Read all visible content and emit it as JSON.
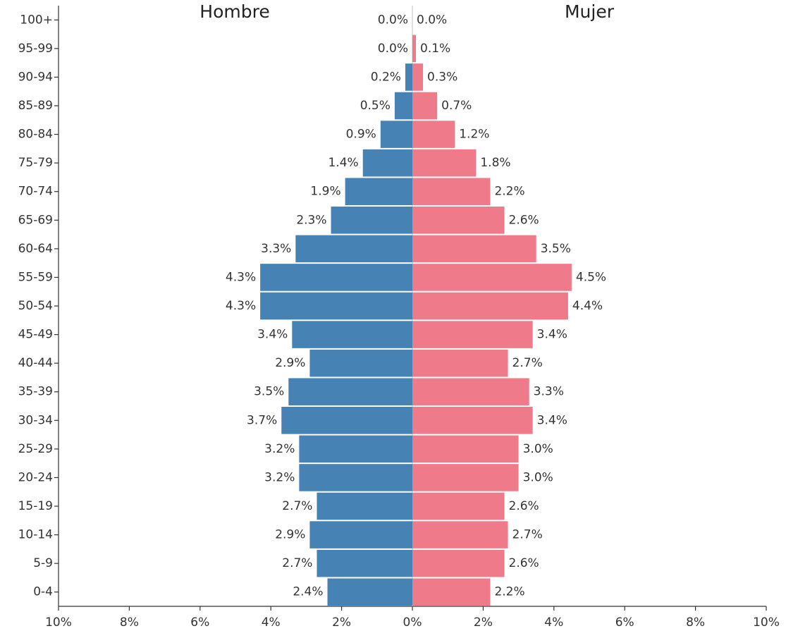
{
  "chart_data": {
    "type": "pyramid",
    "categories": [
      "100+",
      "95-99",
      "90-94",
      "85-89",
      "80-84",
      "75-79",
      "70-74",
      "65-69",
      "60-64",
      "55-59",
      "50-54",
      "45-49",
      "40-44",
      "35-39",
      "30-34",
      "25-29",
      "20-24",
      "15-19",
      "10-14",
      "5-9",
      "0-4"
    ],
    "series": [
      {
        "name": "Hombre",
        "color": "#4682b4",
        "side": "left",
        "values": [
          0.0,
          0.0,
          0.2,
          0.5,
          0.9,
          1.4,
          1.9,
          2.3,
          3.3,
          4.3,
          4.3,
          3.4,
          2.9,
          3.5,
          3.7,
          3.2,
          3.2,
          2.7,
          2.9,
          2.7,
          2.4
        ],
        "value_labels": [
          "0.0%",
          "0.0%",
          "0.2%",
          "0.5%",
          "0.9%",
          "1.4%",
          "1.9%",
          "2.3%",
          "3.3%",
          "4.3%",
          "4.3%",
          "3.4%",
          "2.9%",
          "3.5%",
          "3.7%",
          "3.2%",
          "3.2%",
          "2.7%",
          "2.9%",
          "2.7%",
          "2.4%"
        ]
      },
      {
        "name": "Mujer",
        "color": "#ef7b8a",
        "side": "right",
        "values": [
          0.0,
          0.1,
          0.3,
          0.7,
          1.2,
          1.8,
          2.2,
          2.6,
          3.5,
          4.5,
          4.4,
          3.4,
          2.7,
          3.3,
          3.4,
          3.0,
          3.0,
          2.6,
          2.7,
          2.6,
          2.2
        ],
        "value_labels": [
          "0.0%",
          "0.1%",
          "0.3%",
          "0.7%",
          "1.2%",
          "1.8%",
          "2.2%",
          "2.6%",
          "3.5%",
          "4.5%",
          "4.4%",
          "3.4%",
          "2.7%",
          "3.3%",
          "3.4%",
          "3.0%",
          "3.0%",
          "2.6%",
          "2.7%",
          "2.6%",
          "2.2%"
        ]
      }
    ],
    "xlim": [
      -10,
      10
    ],
    "xticks": [
      {
        "value": -10,
        "label": "10%"
      },
      {
        "value": -8,
        "label": "8%"
      },
      {
        "value": -6,
        "label": "6%"
      },
      {
        "value": -4,
        "label": "4%"
      },
      {
        "value": -2,
        "label": "2%"
      },
      {
        "value": 0,
        "label": "0%"
      },
      {
        "value": 2,
        "label": "2%"
      },
      {
        "value": 4,
        "label": "4%"
      },
      {
        "value": 6,
        "label": "6%"
      },
      {
        "value": 8,
        "label": "8%"
      },
      {
        "value": 10,
        "label": "10%"
      }
    ]
  }
}
